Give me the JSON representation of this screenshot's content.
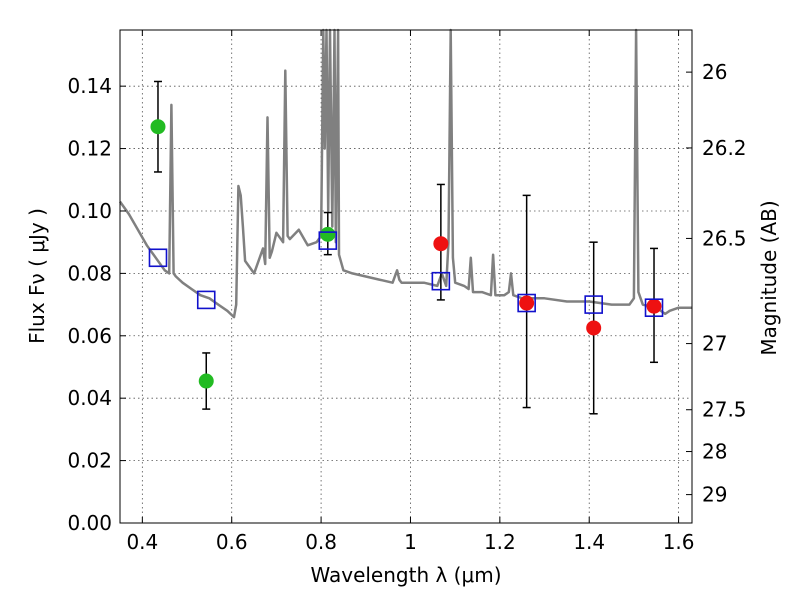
{
  "chart_data": {
    "type": "scatter",
    "xlabel": "Wavelength  λ (μm)",
    "ylabel": "Flux  Fν  ( μJy )",
    "ylabel_right": "Magnitude (AB)",
    "xlim": [
      0.35,
      1.63
    ],
    "ylim": [
      0.0,
      0.158
    ],
    "grid": true,
    "x_ticks": [
      0.4,
      0.6,
      0.8,
      1.0,
      1.2,
      1.4,
      1.6
    ],
    "x_tick_labels": [
      "0.4",
      "0.6",
      "0.8",
      "1",
      "1.2",
      "1.4",
      "1.6"
    ],
    "y_ticks": [
      0.0,
      0.02,
      0.04,
      0.06,
      0.08,
      0.1,
      0.12,
      0.14
    ],
    "y_tick_labels": [
      "0.00",
      "0.02",
      "0.04",
      "0.06",
      "0.08",
      "0.10",
      "0.12",
      "0.14"
    ],
    "right_ticks": [
      {
        "label": "26",
        "flux": 0.1445
      },
      {
        "label": "26.2",
        "flux": 0.1202
      },
      {
        "label": "26.5",
        "flux": 0.0912
      },
      {
        "label": "27",
        "flux": 0.0575
      },
      {
        "label": "27.5",
        "flux": 0.0363
      },
      {
        "label": "28",
        "flux": 0.0229
      },
      {
        "label": "29",
        "flux": 0.0091
      }
    ],
    "colors": {
      "spectrum": "#808080",
      "green": "#22bb22",
      "red": "#ee1111",
      "model": "#1111cc",
      "errorbar": "#000000"
    },
    "series": [
      {
        "name": "spectrum",
        "style": "line",
        "x": [
          0.35,
          0.37,
          0.39,
          0.41,
          0.43,
          0.45,
          0.46,
          0.465,
          0.47,
          0.475,
          0.49,
          0.51,
          0.53,
          0.55,
          0.57,
          0.59,
          0.605,
          0.61,
          0.615,
          0.62,
          0.625,
          0.63,
          0.65,
          0.67,
          0.675,
          0.68,
          0.685,
          0.69,
          0.7,
          0.715,
          0.72,
          0.725,
          0.73,
          0.75,
          0.77,
          0.79,
          0.8,
          0.805,
          0.808,
          0.812,
          0.816,
          0.82,
          0.825,
          0.83,
          0.833,
          0.838,
          0.84,
          0.85,
          0.87,
          0.9,
          0.93,
          0.96,
          0.97,
          0.975,
          0.98,
          1.0,
          1.03,
          1.06,
          1.07,
          1.08,
          1.085,
          1.09,
          1.095,
          1.1,
          1.12,
          1.13,
          1.135,
          1.14,
          1.16,
          1.18,
          1.185,
          1.19,
          1.21,
          1.22,
          1.225,
          1.23,
          1.25,
          1.3,
          1.35,
          1.4,
          1.45,
          1.49,
          1.5,
          1.505,
          1.51,
          1.52,
          1.55,
          1.57,
          1.58,
          1.6,
          1.63
        ],
        "y": [
          0.103,
          0.099,
          0.094,
          0.089,
          0.085,
          0.081,
          0.08,
          0.134,
          0.08,
          0.079,
          0.077,
          0.075,
          0.073,
          0.072,
          0.07,
          0.068,
          0.066,
          0.07,
          0.108,
          0.105,
          0.095,
          0.084,
          0.08,
          0.088,
          0.083,
          0.13,
          0.085,
          0.087,
          0.093,
          0.09,
          0.145,
          0.092,
          0.091,
          0.094,
          0.089,
          0.09,
          0.092,
          0.158,
          0.12,
          0.158,
          0.1,
          0.158,
          0.095,
          0.158,
          0.09,
          0.158,
          0.086,
          0.081,
          0.08,
          0.079,
          0.078,
          0.077,
          0.081,
          0.078,
          0.077,
          0.077,
          0.077,
          0.076,
          0.08,
          0.076,
          0.09,
          0.158,
          0.085,
          0.077,
          0.076,
          0.075,
          0.085,
          0.074,
          0.074,
          0.073,
          0.086,
          0.073,
          0.073,
          0.074,
          0.08,
          0.073,
          0.072,
          0.072,
          0.071,
          0.071,
          0.07,
          0.07,
          0.072,
          0.158,
          0.074,
          0.07,
          0.069,
          0.067,
          0.068,
          0.069,
          0.069
        ]
      },
      {
        "name": "observed-green",
        "style": "circle",
        "x": [
          0.435,
          0.543,
          0.815
        ],
        "y": [
          0.127,
          0.0455,
          0.0925
        ],
        "yerr_low": [
          0.1125,
          0.0365,
          0.086
        ],
        "yerr_high": [
          0.1415,
          0.0545,
          0.0995
        ]
      },
      {
        "name": "observed-red",
        "style": "circle",
        "x": [
          1.068,
          1.26,
          1.41,
          1.545
        ],
        "y": [
          0.0895,
          0.0705,
          0.0625,
          0.0695
        ],
        "yerr_low": [
          0.0715,
          0.037,
          0.035,
          0.0515
        ],
        "yerr_high": [
          0.1085,
          0.105,
          0.09,
          0.088
        ]
      },
      {
        "name": "model-photometry",
        "style": "square",
        "x": [
          0.435,
          0.543,
          0.815,
          1.068,
          1.26,
          1.41,
          1.545
        ],
        "y": [
          0.085,
          0.0715,
          0.0905,
          0.0775,
          0.0705,
          0.07,
          0.069
        ]
      }
    ]
  }
}
